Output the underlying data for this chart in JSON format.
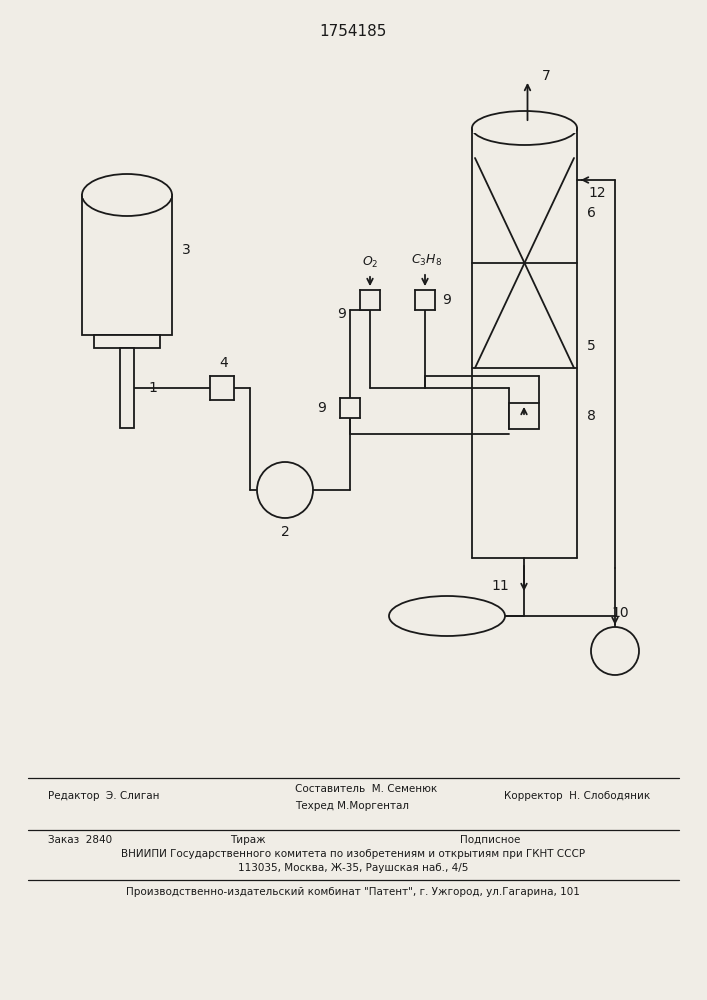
{
  "title": "1754185",
  "bg_color": "#f0ede6",
  "line_color": "#1a1a1a",
  "footer_line1_left": "Редактор  Э. Слиган",
  "footer_line1_center1": "Составитель  М. Семенюк",
  "footer_line1_center2": "Техред М.Моргентал",
  "footer_line1_right": "Корректор  Н. Слободяник",
  "footer_line2a": "Заказ  2840",
  "footer_line2b": "Тираж",
  "footer_line2c": "Подписное",
  "footer_line3": "ВНИИПИ Государственного комитета по изобретениям и открытиям при ГКНТ СССР",
  "footer_line4": "113035, Москва, Ж-35, Раушская наб., 4/5",
  "footer_line5": "Производственно-издательский комбинат \"Патент\", г. Ужгород, ул.Гагарина, 101"
}
